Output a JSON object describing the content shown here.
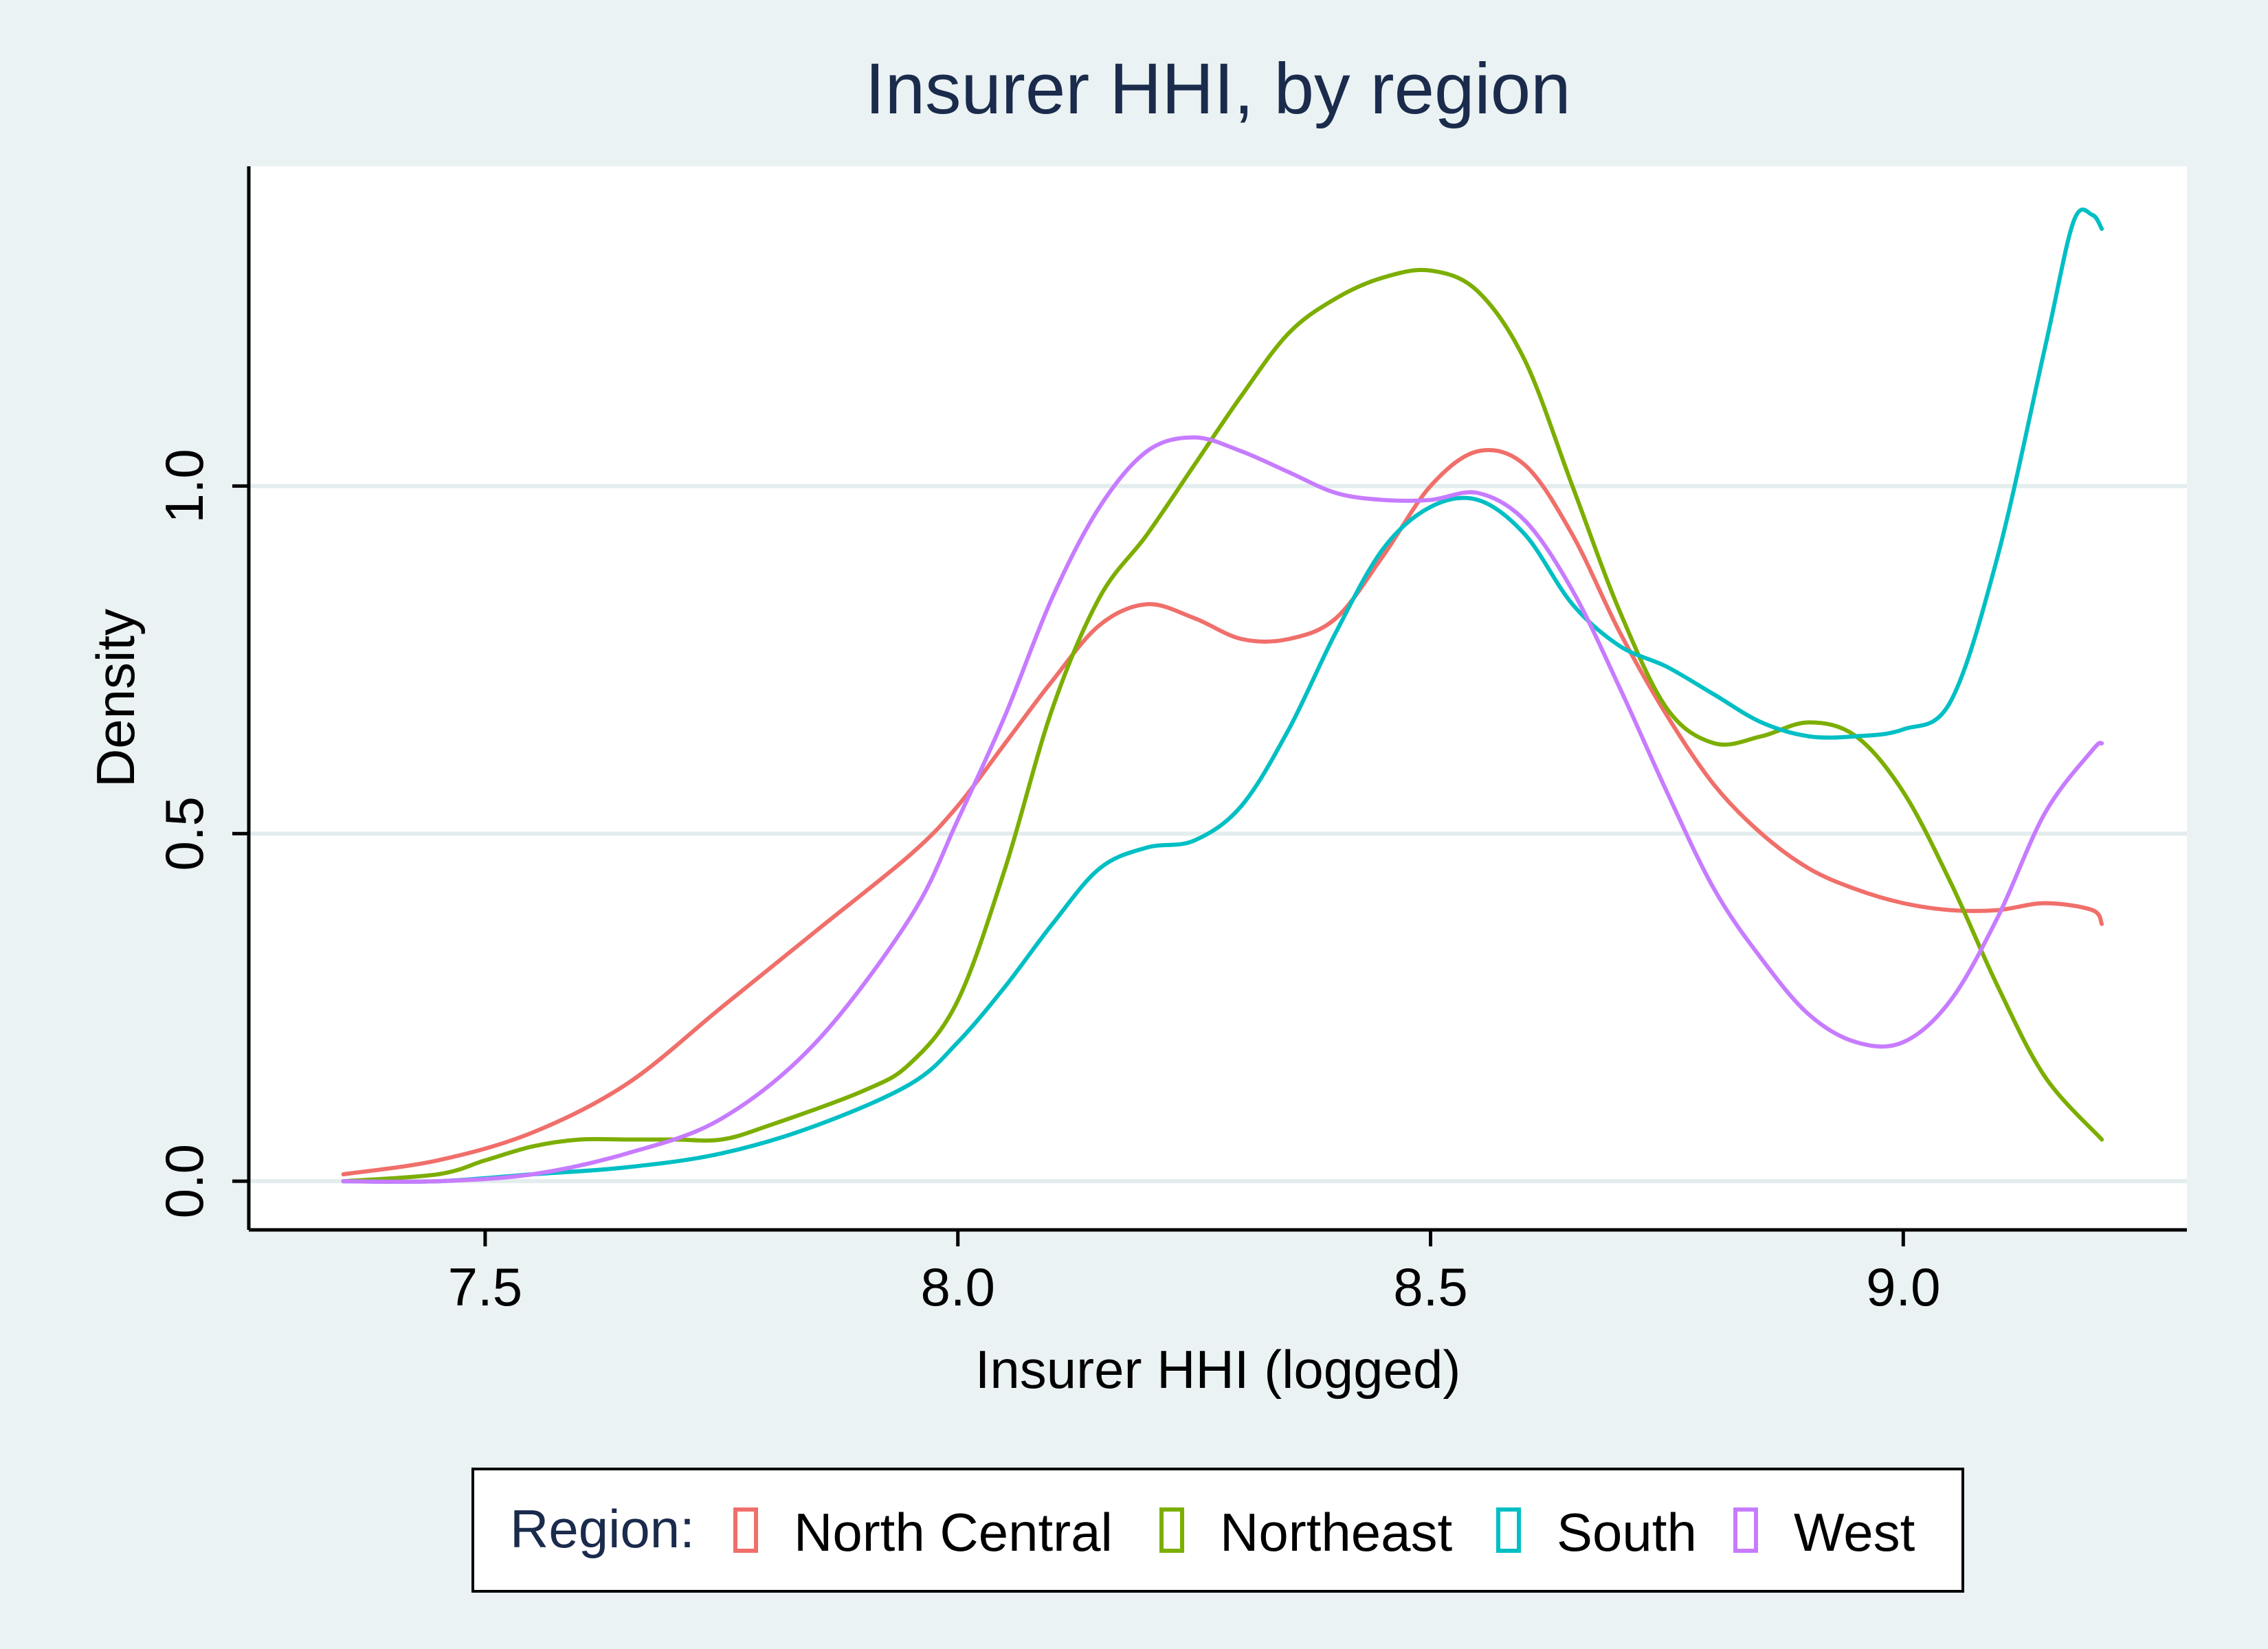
{
  "chart_data": {
    "type": "line",
    "title": "Insurer HHI, by region",
    "xlabel": "Insurer HHI (logged)",
    "ylabel": "Density",
    "xlim": [
      7.25,
      9.3
    ],
    "ylim": [
      -0.07,
      1.46
    ],
    "x_ticks": [
      7.5,
      8.0,
      8.5,
      9.0
    ],
    "x_tick_labels": [
      "7.5",
      "8.0",
      "8.5",
      "9.0"
    ],
    "y_ticks": [
      0.0,
      0.5,
      1.0
    ],
    "y_tick_labels": [
      "0.0",
      "0.5",
      "1.0"
    ],
    "grid": true,
    "legend": {
      "title": "Region:",
      "placement": "bottom"
    },
    "series": [
      {
        "name": "North Central",
        "color": "#f06f6a",
        "x": [
          7.35,
          7.45,
          7.55,
          7.65,
          7.75,
          7.85,
          7.95,
          8.0,
          8.05,
          8.1,
          8.15,
          8.2,
          8.25,
          8.3,
          8.35,
          8.4,
          8.45,
          8.5,
          8.55,
          8.6,
          8.65,
          8.7,
          8.75,
          8.8,
          8.85,
          8.9,
          8.95,
          9.0,
          9.05,
          9.1,
          9.15,
          9.2,
          9.21
        ],
        "y": [
          0.01,
          0.03,
          0.07,
          0.14,
          0.25,
          0.36,
          0.47,
          0.54,
          0.63,
          0.72,
          0.8,
          0.83,
          0.81,
          0.78,
          0.78,
          0.81,
          0.9,
          1.0,
          1.05,
          1.03,
          0.93,
          0.79,
          0.67,
          0.57,
          0.5,
          0.45,
          0.42,
          0.4,
          0.39,
          0.39,
          0.4,
          0.39,
          0.37
        ]
      },
      {
        "name": "Northeast",
        "color": "#7cae00",
        "x": [
          7.35,
          7.45,
          7.5,
          7.55,
          7.6,
          7.65,
          7.7,
          7.75,
          7.8,
          7.9,
          7.95,
          8.0,
          8.05,
          8.1,
          8.15,
          8.2,
          8.25,
          8.3,
          8.35,
          8.4,
          8.45,
          8.5,
          8.55,
          8.6,
          8.65,
          8.7,
          8.75,
          8.8,
          8.85,
          8.9,
          8.95,
          9.0,
          9.05,
          9.1,
          9.15,
          9.21
        ],
        "y": [
          0.0,
          0.01,
          0.03,
          0.05,
          0.06,
          0.06,
          0.06,
          0.06,
          0.08,
          0.13,
          0.17,
          0.26,
          0.45,
          0.68,
          0.84,
          0.93,
          1.03,
          1.13,
          1.22,
          1.27,
          1.3,
          1.31,
          1.28,
          1.18,
          1.0,
          0.82,
          0.68,
          0.63,
          0.64,
          0.66,
          0.64,
          0.56,
          0.43,
          0.28,
          0.15,
          0.06
        ]
      },
      {
        "name": "South",
        "color": "#00bfc4",
        "x": [
          7.35,
          7.45,
          7.55,
          7.65,
          7.75,
          7.85,
          7.95,
          8.0,
          8.05,
          8.1,
          8.15,
          8.2,
          8.25,
          8.3,
          8.35,
          8.4,
          8.45,
          8.5,
          8.55,
          8.6,
          8.65,
          8.7,
          8.75,
          8.8,
          8.85,
          8.9,
          8.95,
          9.0,
          9.05,
          9.1,
          9.15,
          9.18,
          9.2,
          9.21
        ],
        "y": [
          0.0,
          0.0,
          0.01,
          0.02,
          0.04,
          0.08,
          0.14,
          0.2,
          0.28,
          0.37,
          0.45,
          0.48,
          0.49,
          0.54,
          0.65,
          0.79,
          0.91,
          0.97,
          0.98,
          0.93,
          0.83,
          0.77,
          0.74,
          0.7,
          0.66,
          0.64,
          0.64,
          0.65,
          0.69,
          0.9,
          1.2,
          1.38,
          1.39,
          1.37
        ]
      },
      {
        "name": "West",
        "color": "#c77cff",
        "x": [
          7.35,
          7.45,
          7.55,
          7.65,
          7.75,
          7.85,
          7.95,
          8.0,
          8.05,
          8.1,
          8.15,
          8.2,
          8.25,
          8.3,
          8.35,
          8.4,
          8.45,
          8.5,
          8.55,
          8.6,
          8.65,
          8.7,
          8.75,
          8.8,
          8.85,
          8.9,
          8.95,
          9.0,
          9.05,
          9.1,
          9.15,
          9.2,
          9.21
        ],
        "y": [
          0.0,
          0.0,
          0.01,
          0.04,
          0.09,
          0.2,
          0.38,
          0.52,
          0.67,
          0.84,
          0.97,
          1.05,
          1.07,
          1.05,
          1.02,
          0.99,
          0.98,
          0.98,
          0.99,
          0.95,
          0.85,
          0.71,
          0.56,
          0.42,
          0.32,
          0.24,
          0.2,
          0.2,
          0.26,
          0.38,
          0.53,
          0.62,
          0.63
        ]
      }
    ]
  }
}
